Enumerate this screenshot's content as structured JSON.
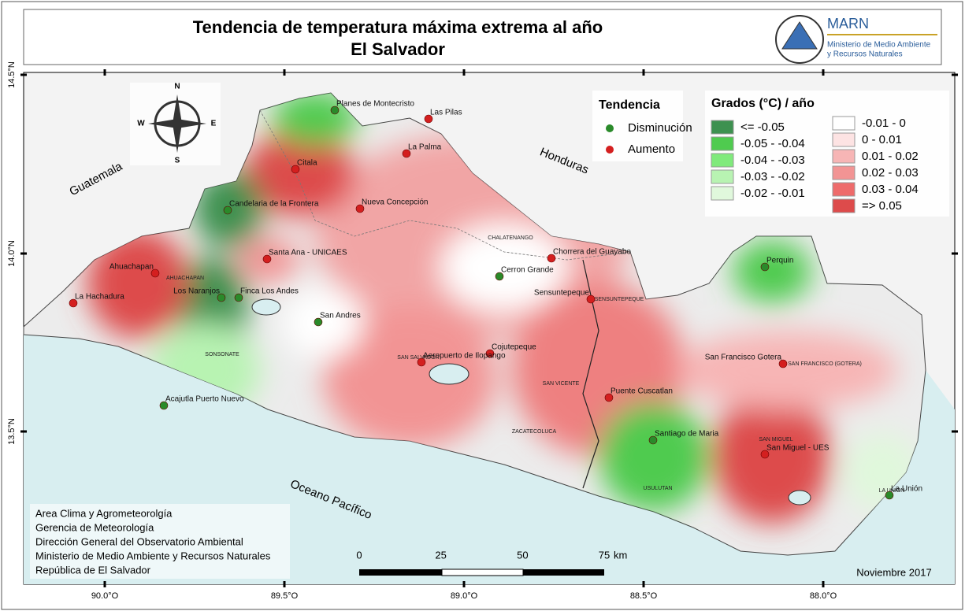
{
  "header": {
    "title": "Tendencia de temperatura máxima extrema al año",
    "subtitle": "El Salvador",
    "org": "MARN",
    "org_name": [
      "Ministerio de Medio Ambiente",
      "y Recursos Naturales"
    ]
  },
  "legend": {
    "trend_title": "Tendencia",
    "trend_items": [
      {
        "label": "Disminución",
        "color": "#2a8a2a"
      },
      {
        "label": "Aumento",
        "color": "#d41f1f"
      }
    ],
    "grades_title": "Grados (°C) / año",
    "grades": [
      {
        "label": "<= -0.05",
        "color": "#3d9150"
      },
      {
        "label": "-0.05 - -0.04",
        "color": "#4fcb4f"
      },
      {
        "label": "-0.04 - -0.03",
        "color": "#80ea7c"
      },
      {
        "label": "-0.03 - -0.02",
        "color": "#b8f3b2"
      },
      {
        "label": "-0.02 - -0.01",
        "color": "#e0f8dc"
      },
      {
        "label": "-0.01 - 0",
        "color": "#ffffff"
      },
      {
        "label": "0 - 0.01",
        "color": "#fde3e3"
      },
      {
        "label": "0.01 - 0.02",
        "color": "#f7b5b5"
      },
      {
        "label": "0.02 - 0.03",
        "color": "#f29494"
      },
      {
        "label": "0.03 - 0.04",
        "color": "#ee6b6b"
      },
      {
        "label": "=> 0.05",
        "color": "#dd4b4b"
      }
    ]
  },
  "stations": [
    {
      "name": "Planes de Montecristo",
      "trend": "Disminución"
    },
    {
      "name": "Las Pilas",
      "trend": "Aumento"
    },
    {
      "name": "La Palma",
      "trend": "Aumento"
    },
    {
      "name": "Citala",
      "trend": "Aumento"
    },
    {
      "name": "Candelaria de la Frontera",
      "trend": "Disminución"
    },
    {
      "name": "Nueva Concepción",
      "trend": "Aumento"
    },
    {
      "name": "Santa Ana - UNICAES",
      "trend": "Aumento"
    },
    {
      "name": "Ahuachapan",
      "trend": "Aumento"
    },
    {
      "name": "La Hachadura",
      "trend": "Aumento"
    },
    {
      "name": "Los Naranjos",
      "trend": "Disminución"
    },
    {
      "name": "Finca Los Andes",
      "trend": "Disminución"
    },
    {
      "name": "San Andres",
      "trend": "Disminución"
    },
    {
      "name": "Cerron Grande",
      "trend": "Disminución"
    },
    {
      "name": "Chorrera del Guayabo",
      "trend": "Aumento"
    },
    {
      "name": "Sensuntepeque",
      "trend": "Aumento"
    },
    {
      "name": "Cojutepeque",
      "trend": "Aumento"
    },
    {
      "name": "Aeropuerto de Ilopango",
      "trend": "Aumento"
    },
    {
      "name": "Acajutla Puerto Nuevo",
      "trend": "Disminución"
    },
    {
      "name": "Puente Cuscatlan",
      "trend": "Aumento"
    },
    {
      "name": "Santiago de Maria",
      "trend": "Disminución"
    },
    {
      "name": "San Miguel - UES",
      "trend": "Aumento"
    },
    {
      "name": "San Francisco Gotera",
      "trend": "Aumento"
    },
    {
      "name": "Perquin",
      "trend": "Disminución"
    },
    {
      "name": "La Unión",
      "trend": "Disminución"
    }
  ],
  "departments": [
    "AHUACHAPAN",
    "SONSONATE",
    "CHALATENANGO",
    "SENSUNTEPEQUE",
    "SAN SALVADOR",
    "SAN VICENTE",
    "ZACATECOLUCA",
    "USULUTAN",
    "SAN MIGUEL",
    "SAN FRANCISCO (GOTERA)",
    "LA UNION"
  ],
  "places": {
    "guatemala": "Guatemala",
    "honduras": "Honduras",
    "ocean": "Oceano Pacífico"
  },
  "compass": {
    "n": "N",
    "s": "S",
    "e": "E",
    "w": "W"
  },
  "lat_labels": [
    "14.5°N",
    "14.0°N",
    "13.5°N"
  ],
  "lon_labels": [
    "90.0°O",
    "89.5°O",
    "89.0°O",
    "88.5°O",
    "88.0°O"
  ],
  "scale": {
    "ticks": [
      0,
      25,
      50,
      75
    ],
    "unit": "km"
  },
  "credits": [
    "Area Clima y Agrometeorolgía",
    "Gerencia de Meteorología",
    "Dirección General del Observatorio Ambiental",
    "Ministerio de Medio Ambiente y Recursos Naturales",
    "República de El Salvador"
  ],
  "date": "Noviembre 2017"
}
